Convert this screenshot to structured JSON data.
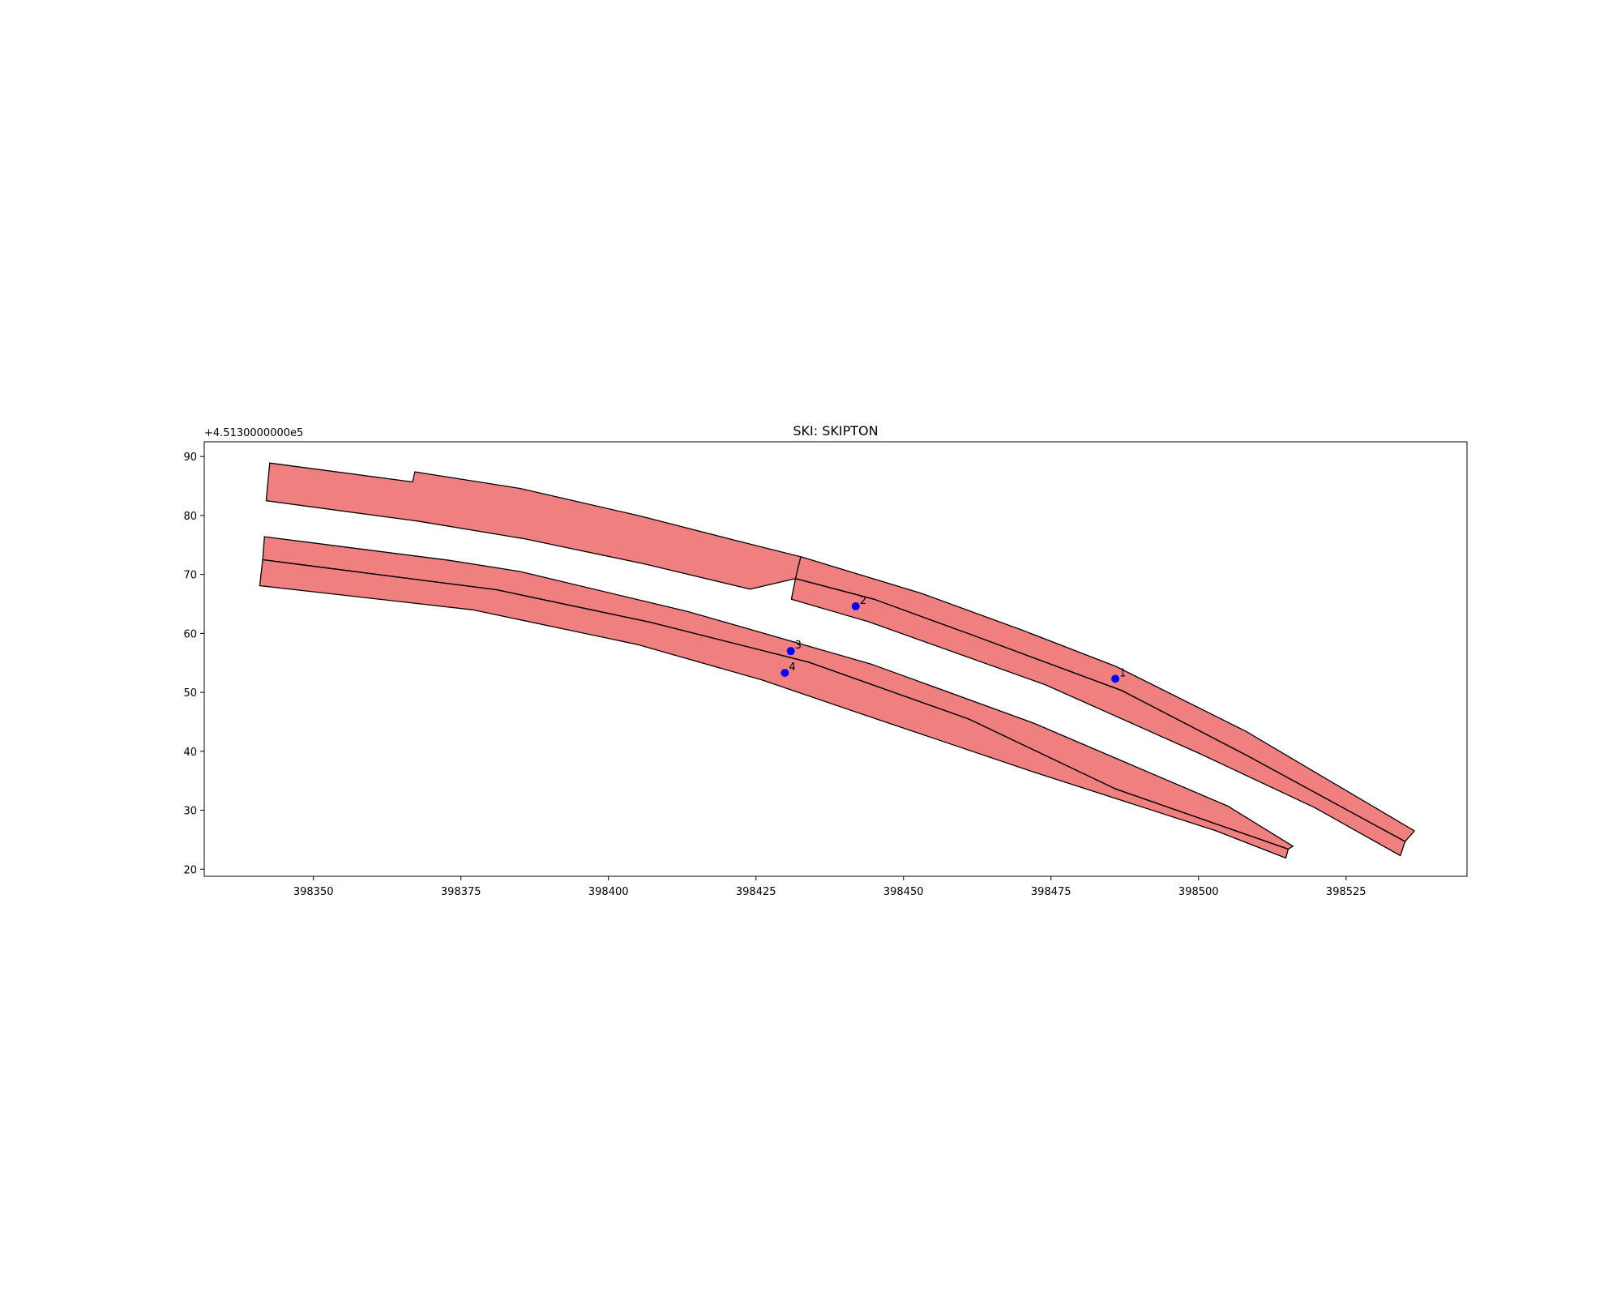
{
  "chart_data": {
    "type": "map-polygons",
    "title": "SKI: SKIPTON",
    "y_offset_label": "+4.5130000000e5",
    "xlim": [
      398331.5,
      398545.5
    ],
    "ylim": [
      18.8,
      92.5
    ],
    "x_ticks": [
      398350,
      398375,
      398400,
      398425,
      398450,
      398475,
      398500,
      398525
    ],
    "y_ticks": [
      20,
      30,
      40,
      50,
      60,
      70,
      80,
      90
    ],
    "fill_color": "#f08080",
    "edge_color": "#000000",
    "point_color": "#0000ff",
    "polygons": [
      {
        "name": "upper-left",
        "coords": [
          [
            398342.6,
            88.9
          ],
          [
            398366.8,
            85.7
          ],
          [
            398367.2,
            87.4
          ],
          [
            398385,
            84.6
          ],
          [
            398405,
            80
          ],
          [
            398423,
            75.4
          ],
          [
            398432.6,
            73
          ],
          [
            398431.7,
            69.3
          ],
          [
            398424,
            67.5
          ],
          [
            398406,
            71.8
          ],
          [
            398386,
            76
          ],
          [
            398368,
            79
          ],
          [
            398342,
            82.5
          ]
        ]
      },
      {
        "name": "upper-right",
        "coords": [
          [
            398432.6,
            73
          ],
          [
            398453,
            66.8
          ],
          [
            398470,
            60.6
          ],
          [
            398486,
            54.4
          ],
          [
            398489,
            52.9
          ],
          [
            398508,
            43.4
          ],
          [
            398536.6,
            26.5
          ],
          [
            398535,
            24.7
          ],
          [
            398508,
            39.4
          ],
          [
            398487,
            50.3
          ],
          [
            398462,
            59.6
          ],
          [
            398445,
            65.8
          ],
          [
            398431.7,
            69.3
          ]
        ]
      },
      {
        "name": "upper-right-south",
        "coords": [
          [
            398431.7,
            69.3
          ],
          [
            398445,
            65.8
          ],
          [
            398462,
            59.6
          ],
          [
            398487,
            50.3
          ],
          [
            398508,
            39.4
          ],
          [
            398535,
            24.7
          ],
          [
            398534.2,
            22.3
          ],
          [
            398519.6,
            30.5
          ],
          [
            398500,
            39.7
          ],
          [
            398474,
            51.3
          ],
          [
            398444,
            62
          ],
          [
            398431,
            65.8
          ]
        ]
      },
      {
        "name": "lower-north",
        "coords": [
          [
            398341.7,
            76.4
          ],
          [
            398373,
            72.4
          ],
          [
            398385,
            70.5
          ],
          [
            398413.5,
            63.7
          ],
          [
            398444.5,
            54.8
          ],
          [
            398472,
            44.8
          ],
          [
            398505,
            30.7
          ],
          [
            398516,
            23.9
          ],
          [
            398515.2,
            23.4
          ],
          [
            398486,
            33.6
          ],
          [
            398461,
            45.5
          ],
          [
            398434,
            55.1
          ],
          [
            398407,
            61.9
          ],
          [
            398381,
            67.4
          ],
          [
            398341.4,
            72.5
          ]
        ]
      },
      {
        "name": "lower-south",
        "coords": [
          [
            398341.4,
            72.5
          ],
          [
            398381,
            67.4
          ],
          [
            398407,
            61.9
          ],
          [
            398434,
            55.1
          ],
          [
            398461,
            45.5
          ],
          [
            398486,
            33.6
          ],
          [
            398515.2,
            23.4
          ],
          [
            398514.8,
            21.9
          ],
          [
            398503,
            26.5
          ],
          [
            398472,
            36.5
          ],
          [
            398443,
            46.3
          ],
          [
            398426,
            52.1
          ],
          [
            398405,
            58.1
          ],
          [
            398377,
            64
          ],
          [
            398340.9,
            68.1
          ]
        ]
      }
    ],
    "polylines": [
      {
        "name": "upper-divider",
        "coords": [
          [
            398431.7,
            69.3
          ],
          [
            398445,
            65.8
          ],
          [
            398462,
            59.6
          ],
          [
            398487,
            50.3
          ],
          [
            398508,
            39.4
          ],
          [
            398535,
            24.7
          ]
        ]
      },
      {
        "name": "lower-divider",
        "coords": [
          [
            398341.4,
            72.5
          ],
          [
            398381,
            67.4
          ],
          [
            398407,
            61.9
          ],
          [
            398434,
            55.1
          ],
          [
            398461,
            45.5
          ],
          [
            398486,
            33.6
          ],
          [
            398515.2,
            23.4
          ]
        ]
      }
    ],
    "points": [
      {
        "label": "1",
        "x": 398485.9,
        "y": 52.3
      },
      {
        "label": "2",
        "x": 398441.9,
        "y": 64.6
      },
      {
        "label": "3",
        "x": 398430.9,
        "y": 57.0
      },
      {
        "label": "4",
        "x": 398429.9,
        "y": 53.3
      }
    ]
  }
}
